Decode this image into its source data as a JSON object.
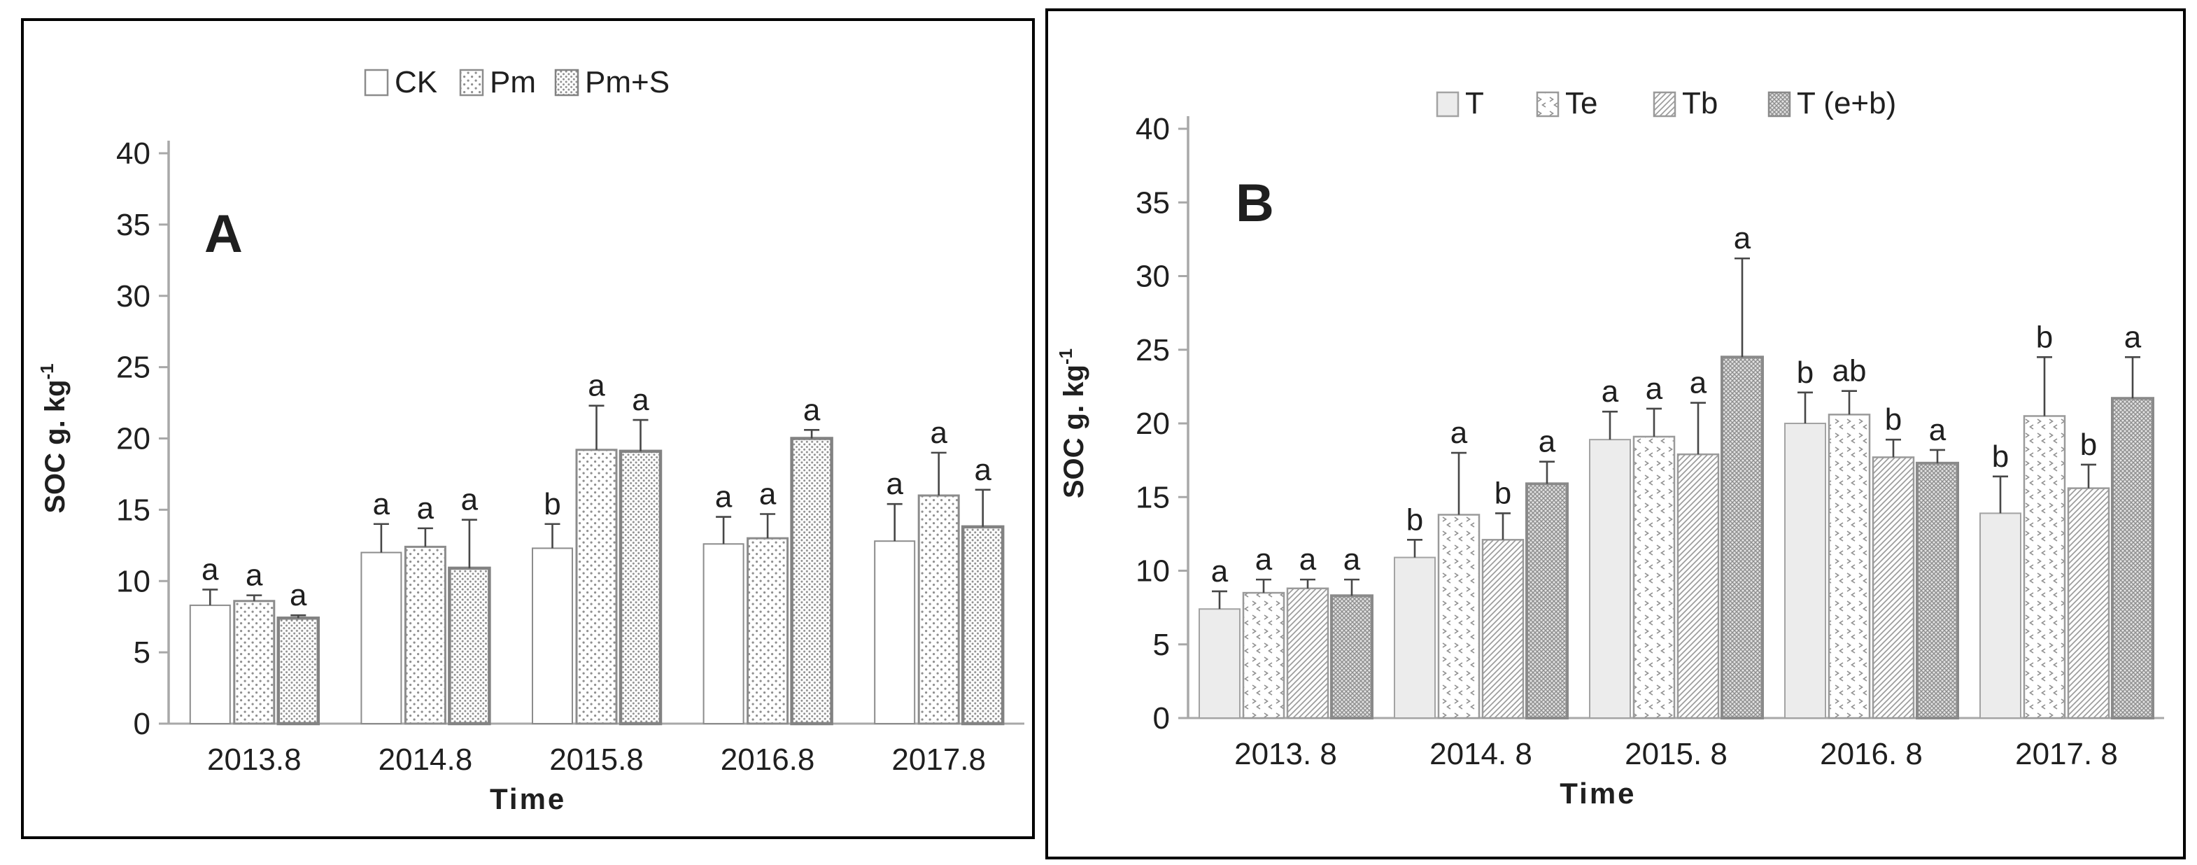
{
  "figure": {
    "background": "#ffffff",
    "panel_border_color": "#000000",
    "axis_color": "#a8a8a8",
    "text_color": "#1f1f1f",
    "error_bar_color": "#474747",
    "sig_letter_color": "#2b2b2b",
    "pattern_ink": "#8f8f8f",
    "solid_bar_fill": "#ececec",
    "crosshatch_bg": "#e3e3e3"
  },
  "chart_data": [
    {
      "type": "bar",
      "panel_label": "A",
      "xlabel": "Time",
      "ylabel": "SOC g. kg⁻¹",
      "ylim": [
        0,
        40
      ],
      "yticks": [
        0,
        5,
        10,
        15,
        20,
        25,
        30,
        35,
        40
      ],
      "grid": false,
      "legend_position": "top",
      "categories": [
        "2013.8",
        "2014.8",
        "2015.8",
        "2016.8",
        "2017.8"
      ],
      "series": [
        {
          "name": "CK",
          "pattern": "plain",
          "values": [
            8.3,
            12.0,
            12.3,
            12.6,
            12.8
          ],
          "errors": [
            1.1,
            2.0,
            1.7,
            1.9,
            2.6
          ],
          "sig_letters": [
            "a",
            "a",
            "b",
            "a",
            "a"
          ]
        },
        {
          "name": "Pm",
          "pattern": "dots-sparse",
          "values": [
            8.6,
            12.4,
            19.2,
            13.0,
            16.0
          ],
          "errors": [
            0.4,
            1.3,
            3.1,
            1.7,
            3.0
          ],
          "sig_letters": [
            "a",
            "a",
            "a",
            "a",
            "a"
          ]
        },
        {
          "name": "Pm+S",
          "pattern": "dots-dense",
          "values": [
            7.4,
            10.9,
            19.1,
            20.0,
            13.8
          ],
          "errors": [
            0.2,
            3.4,
            2.2,
            0.6,
            2.6
          ],
          "sig_letters": [
            "a",
            "a",
            "a",
            "a",
            "a"
          ]
        }
      ]
    },
    {
      "type": "bar",
      "panel_label": "B",
      "xlabel": "Time",
      "ylabel": "SOC g. kg⁻¹",
      "ylim": [
        0,
        40
      ],
      "yticks": [
        0,
        5,
        10,
        15,
        20,
        25,
        30,
        35,
        40
      ],
      "grid": false,
      "legend_position": "top",
      "categories": [
        "2013. 8",
        "2014. 8",
        "2015. 8",
        "2016. 8",
        "2017. 8"
      ],
      "series": [
        {
          "name": "T",
          "pattern": "solid-light",
          "values": [
            7.4,
            10.9,
            18.9,
            20.0,
            13.9
          ],
          "errors": [
            1.2,
            1.2,
            1.9,
            2.1,
            2.5
          ],
          "sig_letters": [
            "a",
            "b",
            "a",
            "b",
            "b"
          ]
        },
        {
          "name": "Te",
          "pattern": "chevrons",
          "values": [
            8.5,
            13.8,
            19.1,
            20.6,
            20.5
          ],
          "errors": [
            0.9,
            4.2,
            1.9,
            1.6,
            4.0
          ],
          "sig_letters": [
            "a",
            "a",
            "a",
            "ab",
            "b"
          ]
        },
        {
          "name": "Tb",
          "pattern": "diag-hatch",
          "values": [
            8.8,
            12.1,
            17.9,
            17.7,
            15.6
          ],
          "errors": [
            0.6,
            1.8,
            3.5,
            1.2,
            1.6
          ],
          "sig_letters": [
            "a",
            "b",
            "a",
            "b",
            "b"
          ]
        },
        {
          "name": "T (e+b)",
          "pattern": "cross-hatch",
          "values": [
            8.3,
            15.9,
            24.5,
            17.3,
            21.7
          ],
          "errors": [
            1.1,
            1.5,
            6.7,
            0.9,
            2.8
          ],
          "sig_letters": [
            "a",
            "a",
            "a",
            "a",
            "a"
          ]
        }
      ]
    }
  ]
}
